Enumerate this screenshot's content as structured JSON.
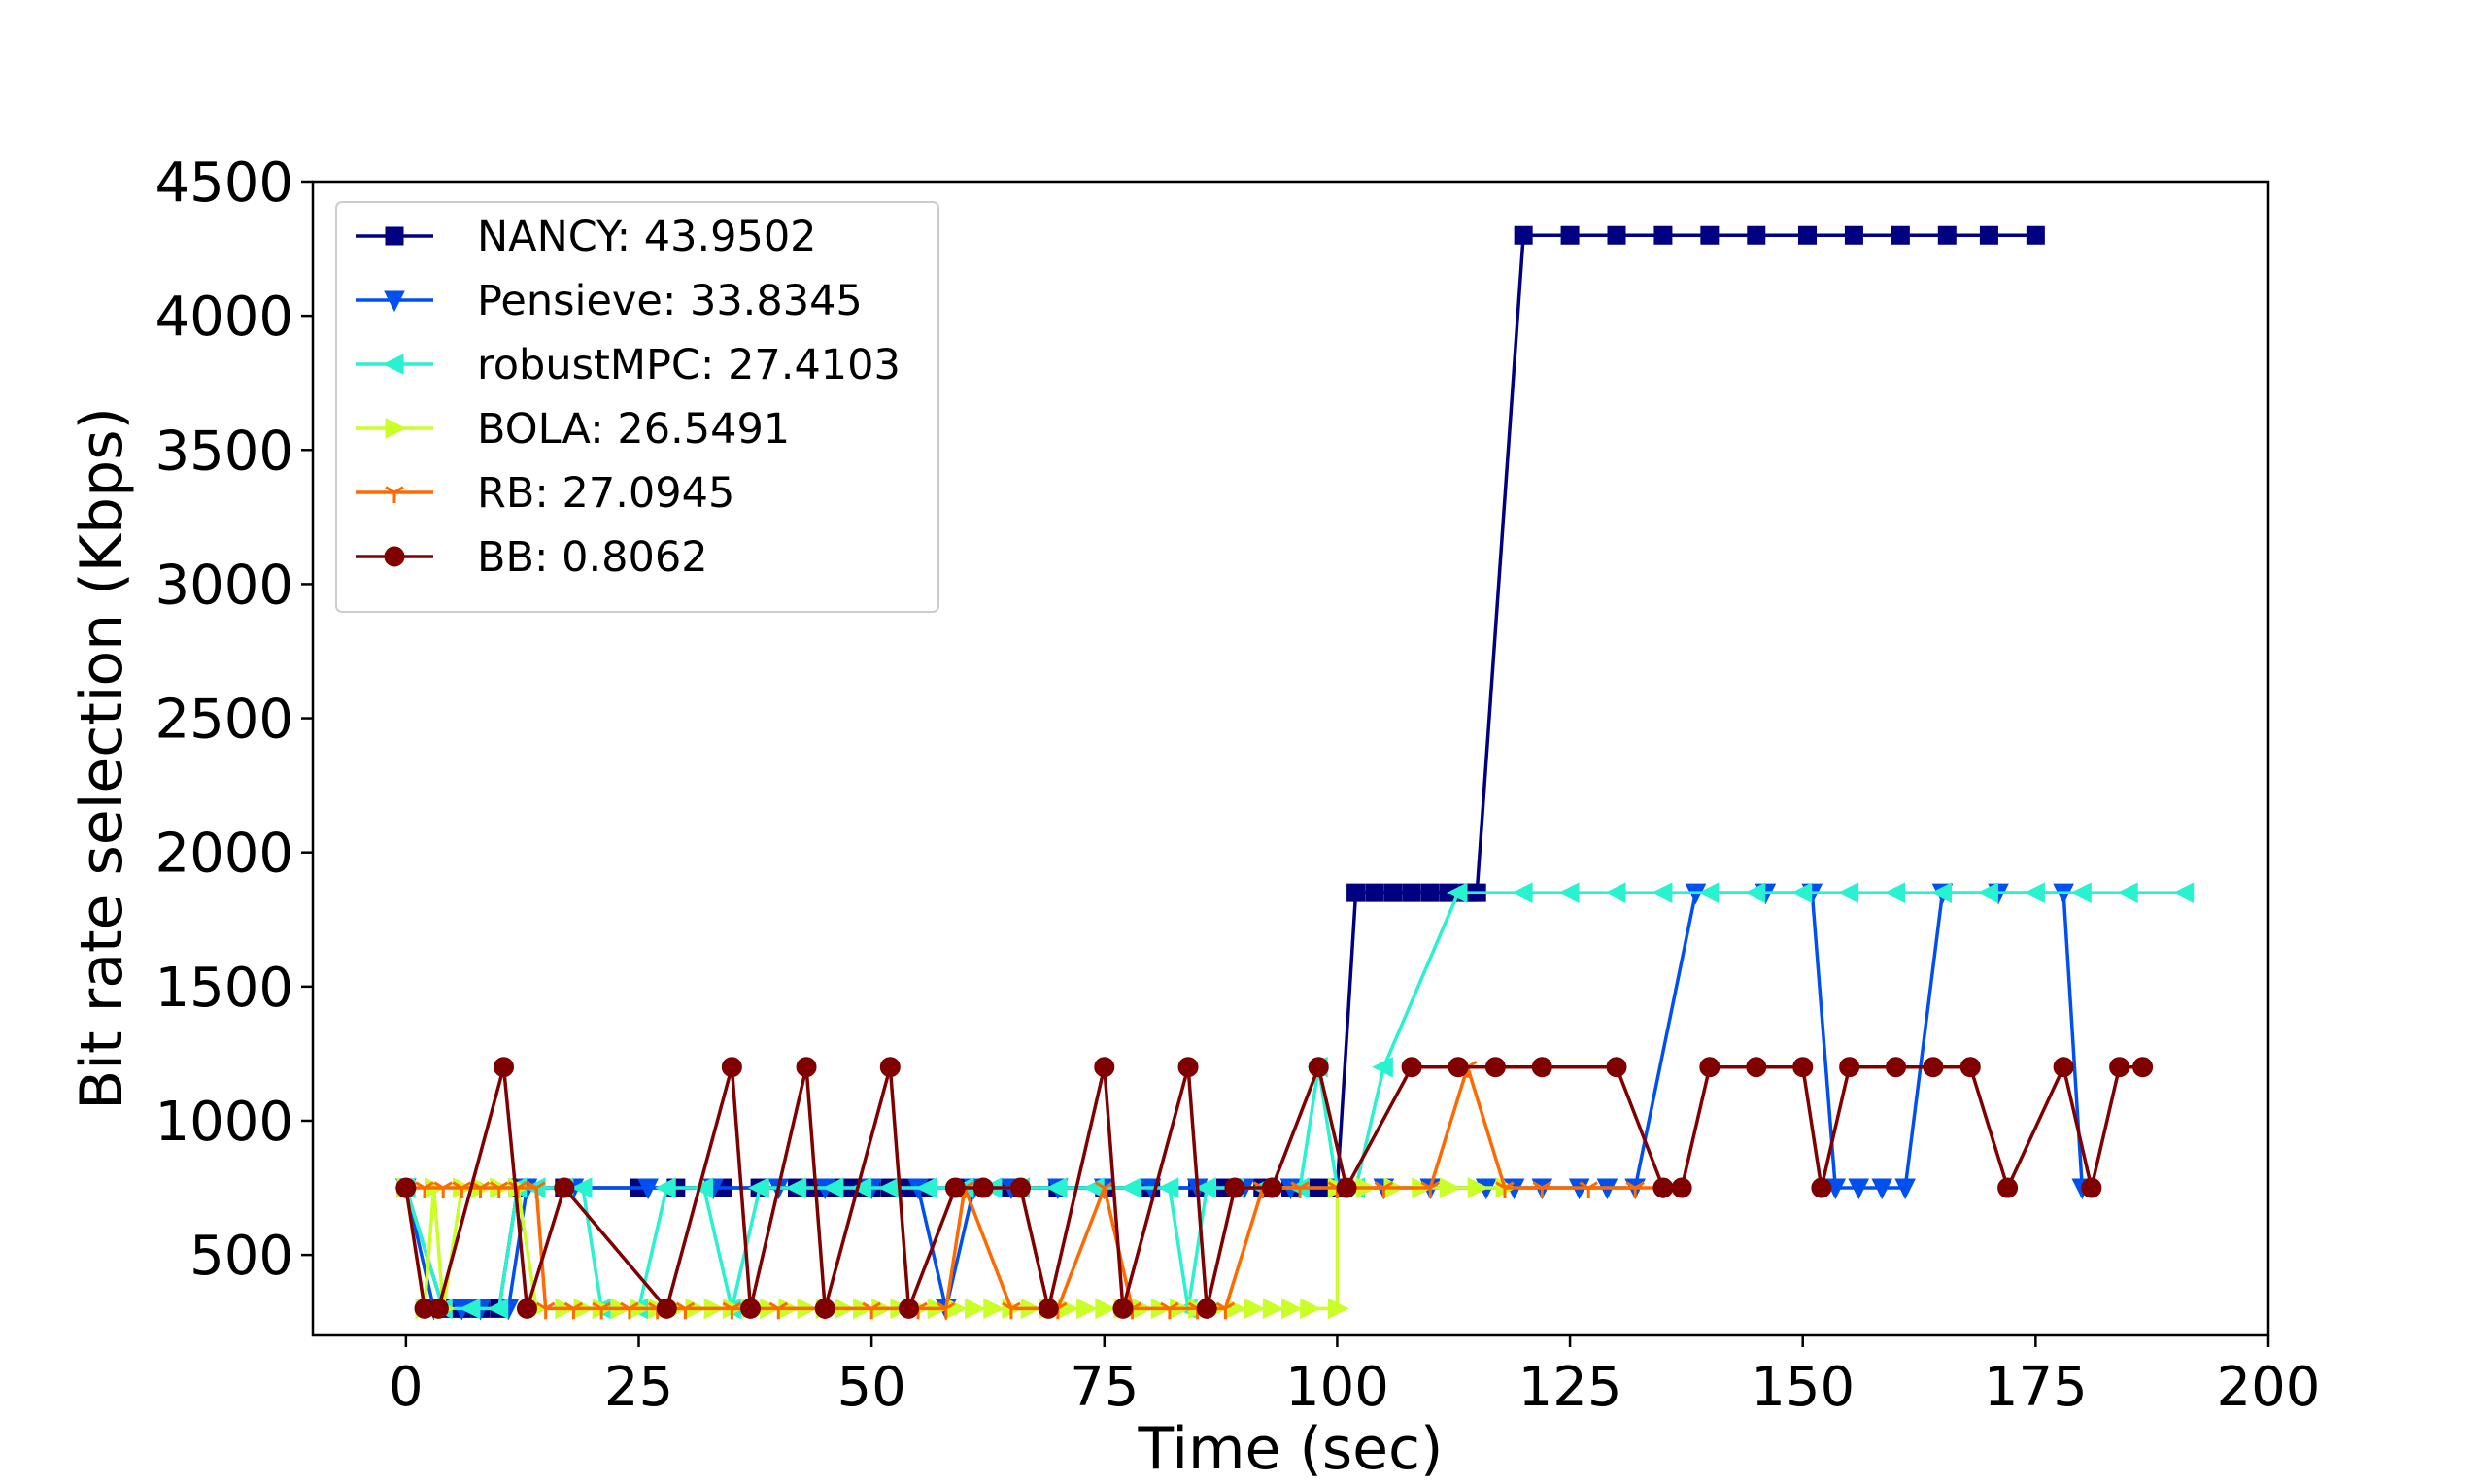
{
  "chart_data": {
    "type": "line",
    "title": "",
    "xlabel": "Time (sec)",
    "ylabel": "Bit rate selection (Kbps)",
    "xlim": [
      -10,
      200
    ],
    "ylim": [
      200,
      4500
    ],
    "xticks": [
      0,
      25,
      50,
      75,
      100,
      125,
      150,
      175,
      200
    ],
    "yticks": [
      500,
      1000,
      1500,
      2000,
      2500,
      3000,
      3500,
      4000,
      4500
    ],
    "grid": false,
    "legend_position": "top-left",
    "series": [
      {
        "name": "NANCY: 43.9502",
        "color": "#000080",
        "marker": "square",
        "points": [
          [
            0,
            750
          ],
          [
            4,
            300
          ],
          [
            6,
            300
          ],
          [
            8,
            300
          ],
          [
            10,
            300
          ],
          [
            12,
            750
          ],
          [
            17,
            750
          ],
          [
            25,
            750
          ],
          [
            29,
            750
          ],
          [
            34,
            750
          ],
          [
            38,
            750
          ],
          [
            42,
            750
          ],
          [
            44,
            750
          ],
          [
            46,
            750
          ],
          [
            48,
            750
          ],
          [
            50,
            750
          ],
          [
            52,
            750
          ],
          [
            54,
            750
          ],
          [
            56,
            750
          ],
          [
            60,
            750
          ],
          [
            65,
            750
          ],
          [
            70,
            750
          ],
          [
            75,
            750
          ],
          [
            80,
            750
          ],
          [
            85,
            750
          ],
          [
            88,
            750
          ],
          [
            92,
            750
          ],
          [
            95,
            750
          ],
          [
            98,
            750
          ],
          [
            100,
            750
          ],
          [
            102,
            1850
          ],
          [
            104,
            1850
          ],
          [
            106,
            1850
          ],
          [
            108,
            1850
          ],
          [
            110,
            1850
          ],
          [
            112,
            1850
          ],
          [
            114,
            1850
          ],
          [
            115,
            1850
          ],
          [
            120,
            4300
          ],
          [
            125,
            4300
          ],
          [
            130,
            4300
          ],
          [
            135,
            4300
          ],
          [
            140,
            4300
          ],
          [
            145,
            4300
          ],
          [
            150.5,
            4300
          ],
          [
            155.5,
            4300
          ],
          [
            160.5,
            4300
          ],
          [
            165.5,
            4300
          ],
          [
            170,
            4300
          ],
          [
            175,
            4300
          ]
        ]
      },
      {
        "name": "Pensieve: 33.8345",
        "color": "#0050f0",
        "marker": "triangle-down",
        "points": [
          [
            0,
            750
          ],
          [
            3,
            300
          ],
          [
            6,
            300
          ],
          [
            8,
            300
          ],
          [
            11,
            300
          ],
          [
            13,
            750
          ],
          [
            18,
            750
          ],
          [
            26,
            750
          ],
          [
            33,
            750
          ],
          [
            40,
            750
          ],
          [
            45,
            750
          ],
          [
            50,
            750
          ],
          [
            55,
            750
          ],
          [
            58,
            300
          ],
          [
            61,
            750
          ],
          [
            65,
            750
          ],
          [
            70,
            750
          ],
          [
            75,
            750
          ],
          [
            80,
            750
          ],
          [
            85,
            750
          ],
          [
            90,
            750
          ],
          [
            95,
            750
          ],
          [
            100,
            750
          ],
          [
            105,
            750
          ],
          [
            110,
            750
          ],
          [
            116,
            750
          ],
          [
            119,
            750
          ],
          [
            122,
            750
          ],
          [
            126,
            750
          ],
          [
            129,
            750
          ],
          [
            132,
            750
          ],
          [
            138.5,
            1850
          ],
          [
            146,
            1850
          ],
          [
            151,
            1850
          ],
          [
            153.5,
            750
          ],
          [
            156,
            750
          ],
          [
            158.5,
            750
          ],
          [
            161,
            750
          ],
          [
            165,
            1850
          ],
          [
            171,
            1850
          ],
          [
            178,
            1850
          ],
          [
            180,
            750
          ]
        ]
      },
      {
        "name": "robustMPC: 27.4103",
        "color": "#29f2d0",
        "marker": "triangle-left",
        "points": [
          [
            0,
            750
          ],
          [
            4,
            300
          ],
          [
            7,
            300
          ],
          [
            10,
            300
          ],
          [
            12,
            750
          ],
          [
            14,
            750
          ],
          [
            17,
            750
          ],
          [
            19,
            750
          ],
          [
            21,
            300
          ],
          [
            25,
            300
          ],
          [
            28,
            750
          ],
          [
            32,
            750
          ],
          [
            35,
            300
          ],
          [
            38,
            750
          ],
          [
            42,
            750
          ],
          [
            46,
            750
          ],
          [
            49,
            750
          ],
          [
            52,
            750
          ],
          [
            56,
            750
          ],
          [
            60,
            750
          ],
          [
            63,
            750
          ],
          [
            66,
            750
          ],
          [
            70,
            750
          ],
          [
            74,
            750
          ],
          [
            78,
            750
          ],
          [
            82,
            750
          ],
          [
            84,
            300
          ],
          [
            86,
            750
          ],
          [
            89,
            750
          ],
          [
            92,
            750
          ],
          [
            96,
            750
          ],
          [
            98,
            1200
          ],
          [
            100,
            750
          ],
          [
            102,
            750
          ],
          [
            105,
            1200
          ],
          [
            113,
            1850
          ],
          [
            120,
            1850
          ],
          [
            125,
            1850
          ],
          [
            130,
            1850
          ],
          [
            135,
            1850
          ],
          [
            140,
            1850
          ],
          [
            145,
            1850
          ],
          [
            150,
            1850
          ],
          [
            155,
            1850
          ],
          [
            160,
            1850
          ],
          [
            165,
            1850
          ],
          [
            170,
            1850
          ],
          [
            175,
            1850
          ],
          [
            180,
            1850
          ],
          [
            185,
            1850
          ],
          [
            191,
            1850
          ]
        ]
      },
      {
        "name": "BOLA: 26.5491",
        "color": "#c9ff27",
        "marker": "triangle-right",
        "points": [
          [
            0,
            750
          ],
          [
            2,
            300
          ],
          [
            3,
            750
          ],
          [
            4,
            300
          ],
          [
            6,
            750
          ],
          [
            8,
            750
          ],
          [
            10,
            750
          ],
          [
            12,
            750
          ],
          [
            14,
            300
          ],
          [
            17,
            300
          ],
          [
            19,
            300
          ],
          [
            21,
            300
          ],
          [
            23,
            300
          ],
          [
            25,
            300
          ],
          [
            27,
            300
          ],
          [
            29,
            300
          ],
          [
            31,
            300
          ],
          [
            33,
            300
          ],
          [
            35,
            300
          ],
          [
            37,
            300
          ],
          [
            39,
            300
          ],
          [
            41,
            300
          ],
          [
            43,
            300
          ],
          [
            45,
            300
          ],
          [
            47,
            300
          ],
          [
            49,
            300
          ],
          [
            51,
            300
          ],
          [
            53,
            300
          ],
          [
            55,
            300
          ],
          [
            57,
            300
          ],
          [
            59,
            300
          ],
          [
            61,
            300
          ],
          [
            63,
            300
          ],
          [
            65,
            300
          ],
          [
            67,
            300
          ],
          [
            69,
            300
          ],
          [
            71,
            300
          ],
          [
            73,
            300
          ],
          [
            75,
            300
          ],
          [
            77,
            300
          ],
          [
            79,
            300
          ],
          [
            81,
            300
          ],
          [
            83,
            300
          ],
          [
            85,
            300
          ],
          [
            87,
            300
          ],
          [
            89,
            300
          ],
          [
            91,
            300
          ],
          [
            93,
            300
          ],
          [
            95,
            300
          ],
          [
            97,
            300
          ],
          [
            100,
            300
          ],
          [
            100,
            750
          ],
          [
            103,
            750
          ],
          [
            106,
            750
          ],
          [
            109,
            750
          ],
          [
            112,
            750
          ],
          [
            115,
            750
          ],
          [
            118,
            750
          ]
        ]
      },
      {
        "name": "RB: 27.0945",
        "color": "#ff6a00",
        "marker": "tri-down",
        "points": [
          [
            0,
            750
          ],
          [
            2,
            750
          ],
          [
            4,
            750
          ],
          [
            6,
            750
          ],
          [
            8,
            750
          ],
          [
            10,
            750
          ],
          [
            12,
            750
          ],
          [
            14,
            750
          ],
          [
            15,
            300
          ],
          [
            18,
            300
          ],
          [
            21,
            300
          ],
          [
            24,
            300
          ],
          [
            27,
            300
          ],
          [
            30,
            300
          ],
          [
            35,
            300
          ],
          [
            40,
            300
          ],
          [
            45,
            300
          ],
          [
            50,
            300
          ],
          [
            55,
            300
          ],
          [
            58,
            300
          ],
          [
            60,
            750
          ],
          [
            65,
            300
          ],
          [
            70,
            300
          ],
          [
            75,
            750
          ],
          [
            78,
            300
          ],
          [
            82,
            300
          ],
          [
            85,
            300
          ],
          [
            88,
            300
          ],
          [
            92,
            750
          ],
          [
            96,
            750
          ],
          [
            100,
            750
          ],
          [
            105,
            750
          ],
          [
            110,
            750
          ],
          [
            114,
            1200
          ],
          [
            118,
            750
          ],
          [
            122,
            750
          ],
          [
            127,
            750
          ],
          [
            132,
            750
          ],
          [
            135,
            750
          ]
        ]
      },
      {
        "name": "BB: 0.8062",
        "color": "#800000",
        "marker": "circle",
        "points": [
          [
            0,
            750
          ],
          [
            2,
            300
          ],
          [
            3.5,
            300
          ],
          [
            10.5,
            1200
          ],
          [
            13,
            300
          ],
          [
            17,
            750
          ],
          [
            28,
            300
          ],
          [
            35,
            1200
          ],
          [
            37,
            300
          ],
          [
            43,
            1200
          ],
          [
            45,
            300
          ],
          [
            52,
            1200
          ],
          [
            54,
            300
          ],
          [
            59,
            750
          ],
          [
            62,
            750
          ],
          [
            66,
            750
          ],
          [
            69,
            300
          ],
          [
            75,
            1200
          ],
          [
            77,
            300
          ],
          [
            84,
            1200
          ],
          [
            86,
            300
          ],
          [
            89,
            750
          ],
          [
            93,
            750
          ],
          [
            98,
            1200
          ],
          [
            101,
            750
          ],
          [
            108,
            1200
          ],
          [
            113,
            1200
          ],
          [
            117,
            1200
          ],
          [
            122,
            1200
          ],
          [
            130,
            1200
          ],
          [
            135,
            750
          ],
          [
            137,
            750
          ],
          [
            140,
            1200
          ],
          [
            145,
            1200
          ],
          [
            150,
            1200
          ],
          [
            152,
            750
          ],
          [
            155,
            1200
          ],
          [
            160,
            1200
          ],
          [
            164,
            1200
          ],
          [
            168,
            1200
          ],
          [
            172,
            750
          ],
          [
            178,
            1200
          ],
          [
            181,
            750
          ],
          [
            184,
            1200
          ],
          [
            186.5,
            1200
          ]
        ]
      }
    ]
  }
}
